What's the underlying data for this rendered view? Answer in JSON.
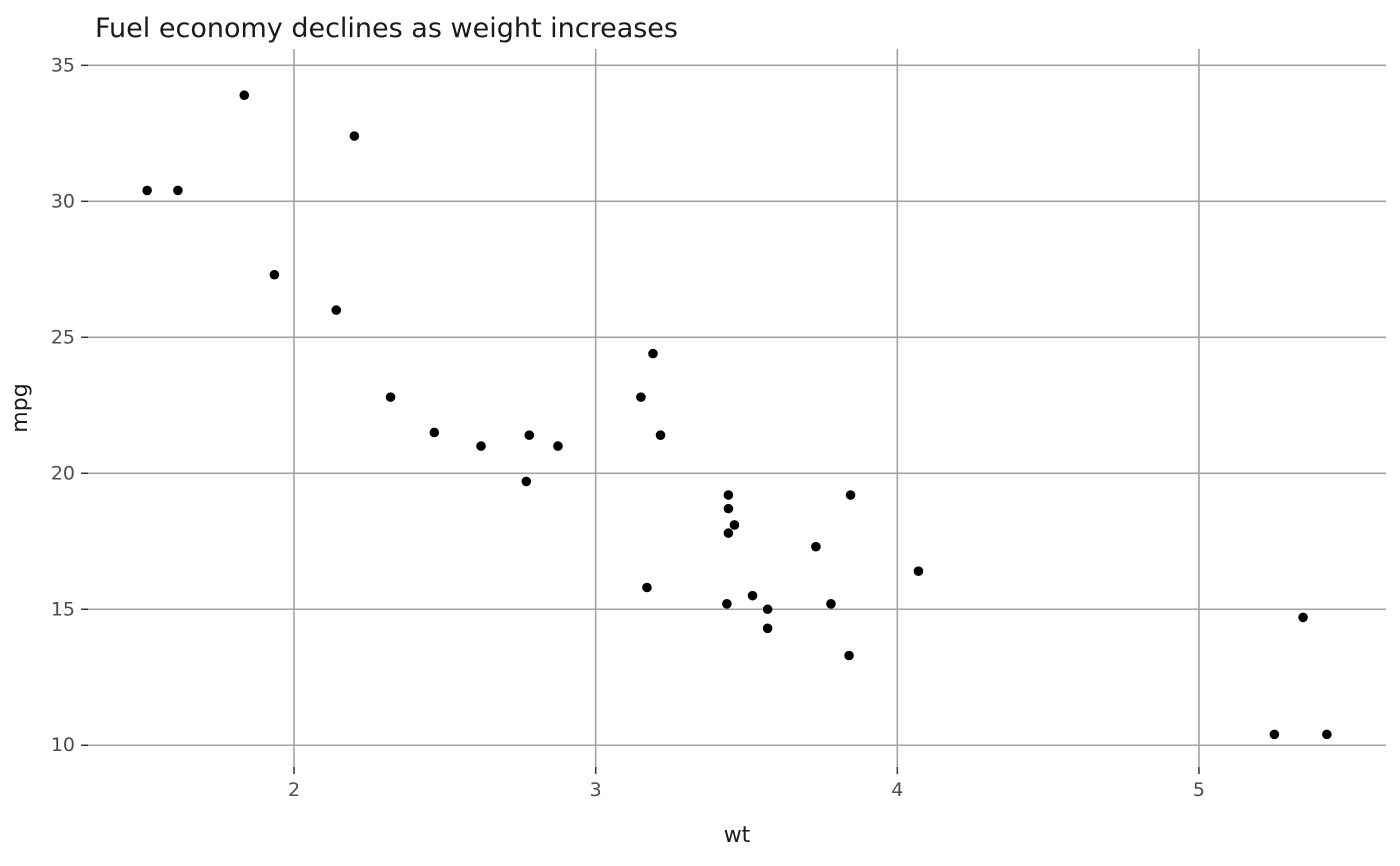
{
  "chart_data": {
    "type": "scatter",
    "title": "Fuel economy declines as weight increases",
    "xlabel": "wt",
    "ylabel": "mpg",
    "xlim": [
      1.317,
      5.62
    ],
    "ylim": [
      9.2,
      35.6
    ],
    "x_ticks": [
      2,
      3,
      4,
      5
    ],
    "y_ticks": [
      10,
      15,
      20,
      25,
      30,
      35
    ],
    "grid": true,
    "point_color": "#000000",
    "grid_color": "#a3a3a3",
    "tick_color": "#333333",
    "points": [
      [
        2.62,
        21.0
      ],
      [
        2.875,
        21.0
      ],
      [
        2.32,
        22.8
      ],
      [
        3.215,
        21.4
      ],
      [
        3.44,
        18.7
      ],
      [
        3.46,
        18.1
      ],
      [
        3.57,
        14.3
      ],
      [
        3.19,
        24.4
      ],
      [
        3.15,
        22.8
      ],
      [
        3.44,
        19.2
      ],
      [
        3.44,
        17.8
      ],
      [
        4.07,
        16.4
      ],
      [
        3.73,
        17.3
      ],
      [
        3.78,
        15.2
      ],
      [
        5.25,
        10.4
      ],
      [
        5.424,
        10.4
      ],
      [
        5.345,
        14.7
      ],
      [
        2.2,
        32.4
      ],
      [
        1.615,
        30.4
      ],
      [
        1.835,
        33.9
      ],
      [
        2.465,
        21.5
      ],
      [
        3.52,
        15.5
      ],
      [
        3.435,
        15.2
      ],
      [
        3.84,
        13.3
      ],
      [
        3.845,
        19.2
      ],
      [
        1.935,
        27.3
      ],
      [
        2.14,
        26.0
      ],
      [
        1.513,
        30.4
      ],
      [
        3.17,
        15.8
      ],
      [
        2.77,
        19.7
      ],
      [
        3.57,
        15.0
      ],
      [
        2.78,
        21.4
      ]
    ]
  }
}
